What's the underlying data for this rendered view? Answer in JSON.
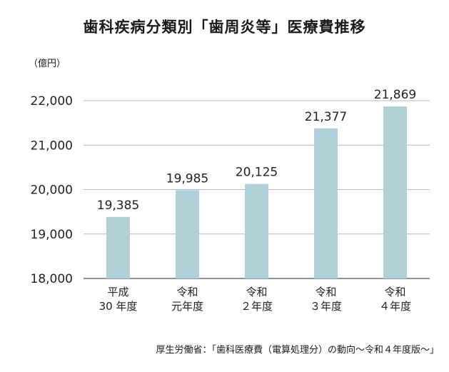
{
  "title": "歯科疾病分類別「歯周炎等」医療費推移",
  "unit_label": "（億円）",
  "source": "厚生労働省：「歯科医療費（電算処理分）の動向〜令和４年度版〜」",
  "colors": {
    "bar": "#aed0d6",
    "grid": "#b8b8b8",
    "axis": "#555555"
  },
  "chart_data": {
    "type": "bar",
    "title": "歯科疾病分類別「歯周炎等」医療費推移",
    "ylabel": "（億円）",
    "ylim": [
      18000,
      22000
    ],
    "yticks": [
      18000,
      19000,
      20000,
      21000,
      22000
    ],
    "ytick_labels": [
      "18,000",
      "19,000",
      "20,000",
      "21,000",
      "22,000"
    ],
    "grid": true,
    "categories": [
      [
        "平成",
        "30 年度"
      ],
      [
        "令和",
        "元年度"
      ],
      [
        "令和",
        "２年度"
      ],
      [
        "令和",
        "３年度"
      ],
      [
        "令和",
        "４年度"
      ]
    ],
    "values": [
      19385,
      19985,
      20125,
      21377,
      21869
    ],
    "value_labels": [
      "19,385",
      "19,985",
      "20,125",
      "21,377",
      "21,869"
    ]
  }
}
